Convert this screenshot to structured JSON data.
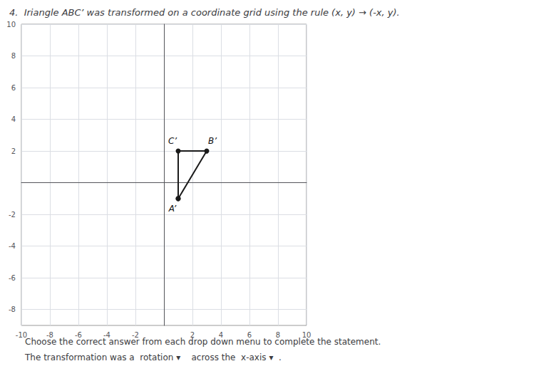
{
  "chart_data": {
    "type": "polygon",
    "title": "4.  Ιriangle AΒC’ was transformed on a coordinate grid using the rule (x, y) → (-x, y).",
    "footnotes": [
      "Choose the correct answer from each drop down menu to complete the statement.",
      "The transformation was a  rotation ▾    across the  x-axis ▾  ."
    ],
    "x": [
      1,
      1,
      3
    ],
    "values": [
      -1,
      2,
      2
    ],
    "annotations": [
      "A’",
      "C’",
      "B’"
    ],
    "color": "#1a1a1a",
    "marker": "o",
    "xlim": [
      -10,
      10
    ],
    "ylim": [
      -9,
      10
    ],
    "xticks": [
      -10,
      -8,
      -6,
      -4,
      -2,
      2,
      4,
      6,
      8,
      10
    ],
    "yticks": [
      -8,
      -6,
      -4,
      -2,
      2,
      4,
      6,
      8,
      10
    ],
    "grid": true
  }
}
